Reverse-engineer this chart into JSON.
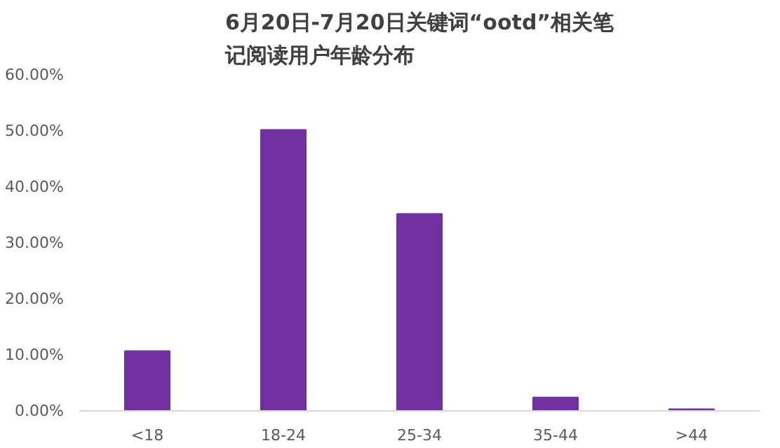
{
  "chart_data": {
    "type": "bar",
    "title": "6月20日-7月20日关键词“ootd”相关笔记阅读用户年龄分布",
    "categories": [
      "<18",
      "18-24",
      "25-34",
      "35-44",
      ">44"
    ],
    "values": [
      10.7,
      50.2,
      35.2,
      2.4,
      0.3
    ],
    "color": "#7030a0",
    "ylim": [
      0,
      60
    ],
    "yticks": [
      {
        "value": 0,
        "label": "0.00%"
      },
      {
        "value": 10,
        "label": "10.00%"
      },
      {
        "value": 20,
        "label": "20.00%"
      },
      {
        "value": 30,
        "label": "30.00%"
      },
      {
        "value": 40,
        "label": "40.00%"
      },
      {
        "value": 50,
        "label": "50.00%"
      },
      {
        "value": 60,
        "label": "60.00%"
      }
    ],
    "grid": false
  }
}
